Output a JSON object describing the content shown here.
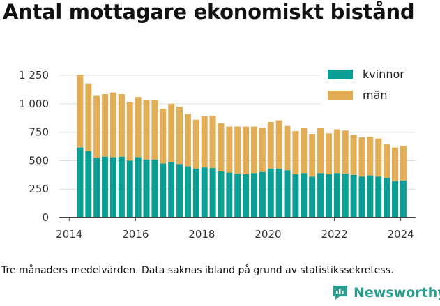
{
  "title": "Antal mottagare ekonomiskt bistånd",
  "footnote": "Tre månaders medelvärden. Data saknas ibland på grund av statistikssekretess.",
  "brand": {
    "name": "Newsworthy",
    "color": "#2a9d8f",
    "icon": "newsworthy-logo-icon"
  },
  "colors": {
    "kvinnor": "#0a9e94",
    "man": "#e2ad54",
    "grid": "#dddddd",
    "axis": "#444444"
  },
  "chart_data": {
    "type": "bar",
    "stacked": true,
    "x_ticks": [
      2014,
      2016,
      2018,
      2020,
      2022,
      2024
    ],
    "y_ticks": [
      0,
      250,
      500,
      750,
      1000,
      1250
    ],
    "y_tick_labels": [
      "0",
      "250",
      "500",
      "750",
      "1 000",
      "1 250"
    ],
    "xlim": [
      2013.7,
      2024.45
    ],
    "ylim": [
      0,
      1300
    ],
    "grid": true,
    "legend_position": "top-right",
    "x": [
      2014.33,
      2014.58,
      2014.83,
      2015.08,
      2015.33,
      2015.58,
      2015.83,
      2016.08,
      2016.33,
      2016.58,
      2016.83,
      2017.08,
      2017.33,
      2017.58,
      2017.83,
      2018.08,
      2018.33,
      2018.58,
      2018.83,
      2019.08,
      2019.33,
      2019.58,
      2019.83,
      2020.08,
      2020.33,
      2020.58,
      2020.83,
      2021.08,
      2021.33,
      2021.58,
      2021.83,
      2022.08,
      2022.33,
      2022.58,
      2022.83,
      2023.08,
      2023.33,
      2023.58,
      2023.83,
      2024.08
    ],
    "series": [
      {
        "name": "kvinnor",
        "values": [
          615,
          585,
          525,
          535,
          530,
          535,
          500,
          530,
          510,
          510,
          475,
          490,
          470,
          450,
          430,
          440,
          435,
          405,
          395,
          385,
          380,
          390,
          400,
          430,
          430,
          415,
          380,
          390,
          360,
          390,
          380,
          390,
          385,
          375,
          360,
          370,
          360,
          345,
          320,
          325
        ]
      },
      {
        "name": "män",
        "values": [
          640,
          595,
          545,
          550,
          570,
          550,
          515,
          530,
          520,
          520,
          480,
          510,
          505,
          460,
          430,
          450,
          460,
          425,
          405,
          415,
          420,
          410,
          390,
          410,
          425,
          390,
          380,
          395,
          375,
          395,
          360,
          385,
          380,
          350,
          345,
          340,
          335,
          300,
          295,
          305
        ]
      }
    ]
  }
}
